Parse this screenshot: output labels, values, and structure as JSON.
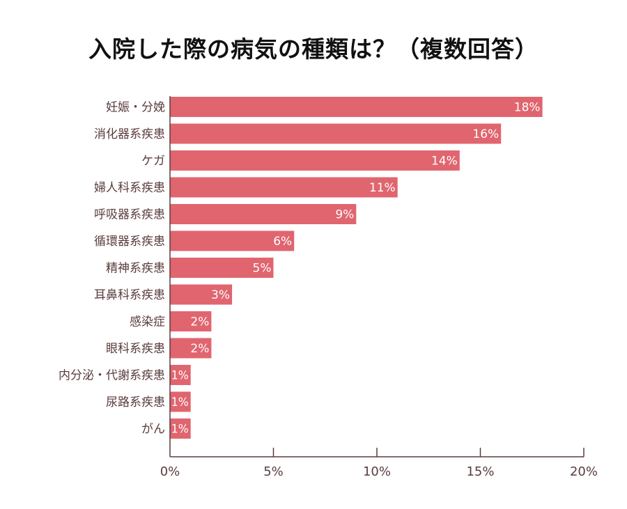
{
  "chart_data": {
    "type": "bar",
    "orientation": "horizontal",
    "title": "入院した際の病気の種類は？（複数回答）",
    "categories": [
      "妊娠・分娩",
      "消化器系疾患",
      "ケガ",
      "婦人科系疾患",
      "呼吸器系疾患",
      "循環器系疾患",
      "精神系疾患",
      "耳鼻科系疾患",
      "感染症",
      "眼科系疾患",
      "内分泌・代謝系疾患",
      "尿路系疾患",
      "がん"
    ],
    "values": [
      18,
      16,
      14,
      11,
      9,
      6,
      5,
      3,
      2,
      2,
      1,
      1,
      1
    ],
    "data_labels": [
      "18%",
      "16%",
      "14%",
      "11%",
      "9%",
      "6%",
      "5%",
      "3%",
      "2%",
      "2%",
      "1%",
      "1%",
      "1%"
    ],
    "xlim": [
      0,
      20
    ],
    "xticks": [
      0,
      5,
      10,
      15,
      20
    ],
    "xtick_labels": [
      "0%",
      "5%",
      "10%",
      "15%",
      "20%"
    ],
    "xlabel": "",
    "ylabel": "",
    "grid": false,
    "bar_color": "#e0656f",
    "text_color": "#5a3c3c"
  }
}
